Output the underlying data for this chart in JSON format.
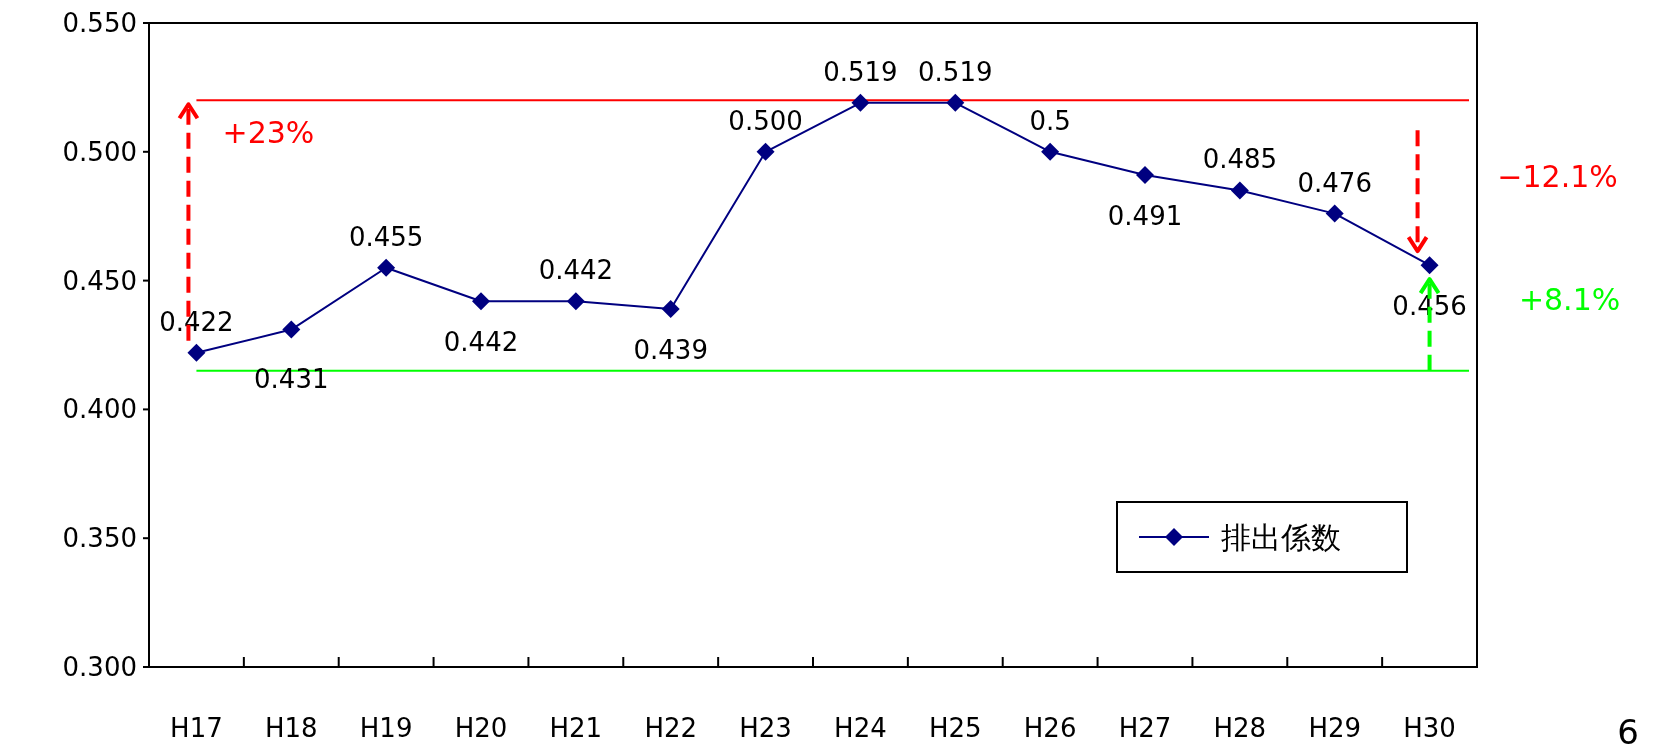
{
  "chart_data": {
    "type": "line",
    "categories": [
      "H17",
      "H18",
      "H19",
      "H20",
      "H21",
      "H22",
      "H23",
      "H24",
      "H25",
      "H26",
      "H27",
      "H28",
      "H29",
      "H30"
    ],
    "series": [
      {
        "name": "排出係数",
        "color": "#000080",
        "values": [
          0.422,
          0.431,
          0.455,
          0.442,
          0.442,
          0.439,
          0.5,
          0.519,
          0.519,
          0.5,
          0.491,
          0.485,
          0.476,
          0.456
        ],
        "value_labels": [
          "0.422",
          "0.431",
          "0.455",
          "0.442",
          "0.442",
          "0.439",
          "0.500",
          "0.519",
          "0.519",
          "0.5",
          "0.491",
          "0.485",
          "0.476",
          "0.456"
        ]
      }
    ],
    "ylim": [
      0.3,
      0.55
    ],
    "yticks": [
      {
        "value": 0.3,
        "label": "0.300"
      },
      {
        "value": 0.35,
        "label": "0.350"
      },
      {
        "value": 0.4,
        "label": "0.400"
      },
      {
        "value": 0.45,
        "label": "0.450"
      },
      {
        "value": 0.5,
        "label": "0.500"
      },
      {
        "value": 0.55,
        "label": "0.550"
      }
    ],
    "ref_lines": [
      {
        "axis": "y",
        "value": 0.52,
        "color": "#ff0000"
      },
      {
        "axis": "y",
        "value": 0.415,
        "color": "#00ff00"
      }
    ],
    "annotations": [
      "+23%",
      "−12.1%",
      "+8.1%",
      "6"
    ],
    "marker": "diamond",
    "line_style": "solid",
    "grid": false,
    "legend": "bottom right"
  }
}
